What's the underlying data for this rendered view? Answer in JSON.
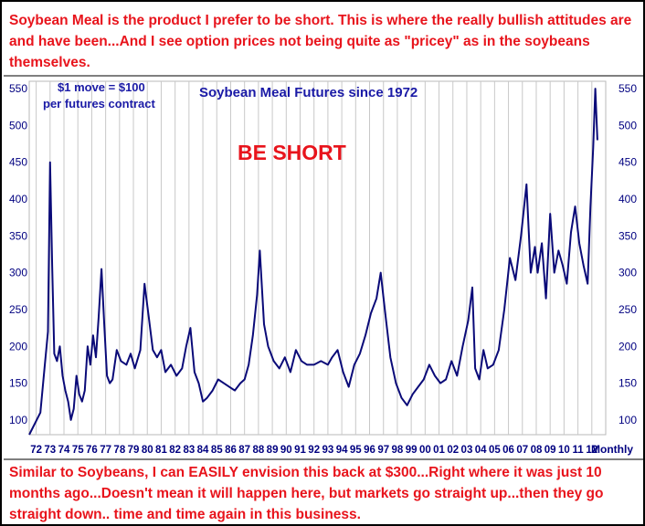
{
  "commentary": {
    "top": "Soybean Meal is the product I prefer to be short. This is where the really bullish attitudes are and have been...And I see option prices not being quite as \"pricey\" as in the soybeans themselves.",
    "bottom": "Similar to Soybeans, I can EASILY envision this back at $300...Right where it was just 10 months ago...Doesn't mean it will happen here, but markets go straight up...then they go straight down.. time and time again in this business."
  },
  "chart_data": {
    "type": "line",
    "title": "Soybean Meal Futures since 1972",
    "annotations": [
      "$1 move = $100",
      "per futures contract",
      "BE SHORT"
    ],
    "frequency_label": "Monthly",
    "xlabel": "",
    "ylabel": "",
    "x_range": [
      1972,
      2013.5
    ],
    "ylim": [
      80,
      560
    ],
    "yticks": [
      100,
      150,
      200,
      250,
      300,
      350,
      400,
      450,
      500,
      550
    ],
    "xticks": [
      "72",
      "73",
      "74",
      "75",
      "76",
      "77",
      "78",
      "79",
      "80",
      "81",
      "82",
      "83",
      "84",
      "85",
      "86",
      "87",
      "88",
      "89",
      "90",
      "91",
      "92",
      "93",
      "94",
      "95",
      "96",
      "97",
      "98",
      "99",
      "00",
      "01",
      "02",
      "03",
      "04",
      "05",
      "06",
      "07",
      "08",
      "09",
      "10",
      "11",
      "12"
    ],
    "grid": "vertical",
    "series": [
      {
        "color": "#0a0a78",
        "x": [
          1972.0,
          1972.4,
          1972.8,
          1973.1,
          1973.35,
          1973.5,
          1973.65,
          1973.8,
          1974.0,
          1974.2,
          1974.4,
          1974.6,
          1974.8,
          1975.0,
          1975.2,
          1975.4,
          1975.6,
          1975.8,
          1976.0,
          1976.2,
          1976.4,
          1976.6,
          1976.8,
          1977.0,
          1977.2,
          1977.4,
          1977.6,
          1977.8,
          1978.0,
          1978.3,
          1978.6,
          1979.0,
          1979.3,
          1979.6,
          1980.0,
          1980.3,
          1980.6,
          1980.9,
          1981.2,
          1981.5,
          1981.8,
          1982.2,
          1982.6,
          1983.0,
          1983.3,
          1983.6,
          1983.9,
          1984.2,
          1984.5,
          1984.8,
          1985.2,
          1985.6,
          1986.0,
          1986.4,
          1986.8,
          1987.2,
          1987.5,
          1987.8,
          1988.1,
          1988.4,
          1988.6,
          1988.9,
          1989.2,
          1989.6,
          1990.0,
          1990.4,
          1990.8,
          1991.2,
          1991.6,
          1992.0,
          1992.5,
          1993.0,
          1993.5,
          1993.8,
          1994.2,
          1994.6,
          1995.0,
          1995.4,
          1995.8,
          1996.2,
          1996.6,
          1997.0,
          1997.3,
          1997.6,
          1998.0,
          1998.4,
          1998.8,
          1999.2,
          1999.6,
          2000.0,
          2000.4,
          2000.8,
          2001.2,
          2001.6,
          2002.0,
          2002.4,
          2002.8,
          2003.2,
          2003.6,
          2003.9,
          2004.1,
          2004.4,
          2004.7,
          2005.0,
          2005.4,
          2005.8,
          2006.2,
          2006.6,
          2007.0,
          2007.4,
          2007.8,
          2008.1,
          2008.4,
          2008.6,
          2008.9,
          2009.2,
          2009.5,
          2009.8,
          2010.1,
          2010.4,
          2010.7,
          2011.0,
          2011.3,
          2011.6,
          2011.9,
          2012.2,
          2012.4,
          2012.6,
          2012.75,
          2012.9
        ],
        "y": [
          80,
          95,
          110,
          170,
          220,
          450,
          310,
          190,
          180,
          200,
          160,
          140,
          125,
          100,
          115,
          160,
          135,
          125,
          140,
          200,
          175,
          215,
          185,
          240,
          305,
          230,
          160,
          150,
          155,
          195,
          180,
          175,
          190,
          170,
          195,
          285,
          240,
          195,
          185,
          195,
          165,
          175,
          160,
          170,
          200,
          225,
          165,
          150,
          125,
          130,
          140,
          155,
          150,
          145,
          140,
          150,
          155,
          175,
          215,
          270,
          330,
          230,
          200,
          180,
          170,
          185,
          165,
          195,
          180,
          175,
          175,
          180,
          175,
          185,
          195,
          165,
          145,
          175,
          190,
          215,
          245,
          265,
          300,
          250,
          185,
          150,
          130,
          120,
          135,
          145,
          155,
          175,
          160,
          150,
          155,
          180,
          160,
          200,
          235,
          280,
          170,
          155,
          195,
          170,
          175,
          195,
          250,
          320,
          290,
          350,
          420,
          300,
          335,
          300,
          340,
          265,
          380,
          300,
          330,
          310,
          285,
          355,
          390,
          340,
          310,
          285,
          390,
          470,
          550,
          480
        ]
      }
    ]
  }
}
